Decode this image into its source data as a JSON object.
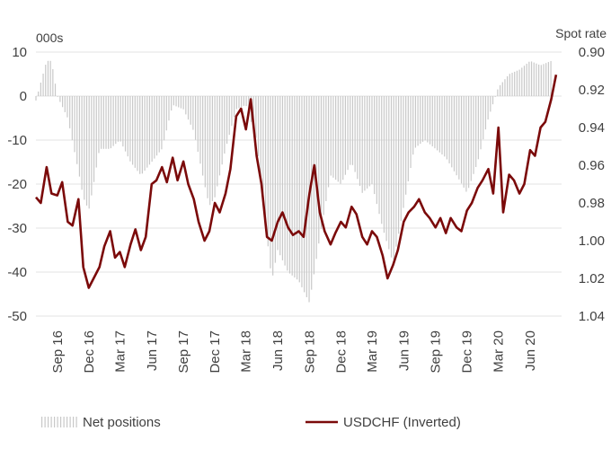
{
  "chart_data": {
    "type": "bar+line",
    "title": "",
    "left_axis": {
      "unit_label": "000s",
      "range": [
        -50,
        10
      ],
      "ticks": [
        "10",
        "0",
        "-10",
        "-20",
        "-30",
        "-40",
        "-50"
      ]
    },
    "right_axis": {
      "unit_label": "Spot rate",
      "range": [
        0.9,
        1.04
      ],
      "inverted": true,
      "ticks": [
        "0.90",
        "0.92",
        "0.94",
        "0.96",
        "0.98",
        "1.00",
        "1.02",
        "1.04"
      ]
    },
    "x_axis": {
      "start": "2016-07-01",
      "end": "2020-08-31",
      "labels": [
        {
          "text": "Sep 16",
          "date": "2016-09-01"
        },
        {
          "text": "Dec 16",
          "date": "2016-12-01"
        },
        {
          "text": "Mar 17",
          "date": "2017-03-01"
        },
        {
          "text": "Jun 17",
          "date": "2017-06-01"
        },
        {
          "text": "Sep 17",
          "date": "2017-09-01"
        },
        {
          "text": "Dec 17",
          "date": "2017-12-01"
        },
        {
          "text": "Mar 18",
          "date": "2018-03-01"
        },
        {
          "text": "Jun 18",
          "date": "2018-06-01"
        },
        {
          "text": "Sep 18",
          "date": "2018-09-01"
        },
        {
          "text": "Dec 18",
          "date": "2018-12-01"
        },
        {
          "text": "Mar 19",
          "date": "2019-03-01"
        },
        {
          "text": "Jun 19",
          "date": "2019-06-01"
        },
        {
          "text": "Sep 19",
          "date": "2019-09-01"
        },
        {
          "text": "Dec 19",
          "date": "2019-12-01"
        },
        {
          "text": "Mar 20",
          "date": "2020-03-01"
        },
        {
          "text": "Jun 20",
          "date": "2020-06-01"
        }
      ]
    },
    "grid": "horizontal",
    "legend_position": "bottom",
    "series": [
      {
        "name": "Net positions",
        "type": "bar",
        "axis": "left",
        "color": "#c8c8c8",
        "points": [
          [
            "2016-07-01",
            -1
          ],
          [
            "2016-08-01",
            8
          ],
          [
            "2016-08-15",
            8
          ],
          [
            "2016-09-01",
            0
          ],
          [
            "2016-10-01",
            -5
          ],
          [
            "2016-11-01",
            -17
          ],
          [
            "2016-11-15",
            -23
          ],
          [
            "2016-12-01",
            -26
          ],
          [
            "2016-12-15",
            -20
          ],
          [
            "2017-01-01",
            -12
          ],
          [
            "2017-02-01",
            -12
          ],
          [
            "2017-03-01",
            -10
          ],
          [
            "2017-04-01",
            -15
          ],
          [
            "2017-05-01",
            -18
          ],
          [
            "2017-06-01",
            -15
          ],
          [
            "2017-07-01",
            -12
          ],
          [
            "2017-08-01",
            -2
          ],
          [
            "2017-09-01",
            -3
          ],
          [
            "2017-10-01",
            -8
          ],
          [
            "2017-11-01",
            -20
          ],
          [
            "2017-11-15",
            -25
          ],
          [
            "2017-12-01",
            -23
          ],
          [
            "2018-01-01",
            -12
          ],
          [
            "2018-02-01",
            -3
          ],
          [
            "2018-03-01",
            -2
          ],
          [
            "2018-04-01",
            -10
          ],
          [
            "2018-05-01",
            -32
          ],
          [
            "2018-05-15",
            -42
          ],
          [
            "2018-06-01",
            -35
          ],
          [
            "2018-07-01",
            -40
          ],
          [
            "2018-08-01",
            -42
          ],
          [
            "2018-09-01",
            -47
          ],
          [
            "2018-10-01",
            -32
          ],
          [
            "2018-11-01",
            -18
          ],
          [
            "2018-12-01",
            -20
          ],
          [
            "2019-01-01",
            -15
          ],
          [
            "2019-02-01",
            -22
          ],
          [
            "2019-03-01",
            -20
          ],
          [
            "2019-04-01",
            -30
          ],
          [
            "2019-05-01",
            -38
          ],
          [
            "2019-06-01",
            -25
          ],
          [
            "2019-07-01",
            -12
          ],
          [
            "2019-08-01",
            -10
          ],
          [
            "2019-09-01",
            -12
          ],
          [
            "2019-10-01",
            -14
          ],
          [
            "2019-11-01",
            -18
          ],
          [
            "2019-12-01",
            -22
          ],
          [
            "2020-01-01",
            -15
          ],
          [
            "2020-02-01",
            -5
          ],
          [
            "2020-03-01",
            2
          ],
          [
            "2020-04-01",
            5
          ],
          [
            "2020-05-01",
            6
          ],
          [
            "2020-06-01",
            8
          ],
          [
            "2020-07-01",
            7
          ],
          [
            "2020-08-01",
            8
          ]
        ]
      },
      {
        "name": "USDCHF (Inverted)",
        "type": "line",
        "axis": "right",
        "color": "#7b0a0a",
        "points": [
          [
            "2016-07-01",
            0.977
          ],
          [
            "2016-07-15",
            0.98
          ],
          [
            "2016-08-01",
            0.961
          ],
          [
            "2016-08-15",
            0.975
          ],
          [
            "2016-09-01",
            0.976
          ],
          [
            "2016-09-15",
            0.969
          ],
          [
            "2016-10-01",
            0.99
          ],
          [
            "2016-10-15",
            0.992
          ],
          [
            "2016-11-01",
            0.978
          ],
          [
            "2016-11-15",
            1.014
          ],
          [
            "2016-12-01",
            1.025
          ],
          [
            "2016-12-15",
            1.02
          ],
          [
            "2017-01-01",
            1.014
          ],
          [
            "2017-01-15",
            1.003
          ],
          [
            "2017-02-01",
            0.995
          ],
          [
            "2017-02-15",
            1.009
          ],
          [
            "2017-03-01",
            1.006
          ],
          [
            "2017-03-15",
            1.014
          ],
          [
            "2017-04-01",
            1.002
          ],
          [
            "2017-04-15",
            0.994
          ],
          [
            "2017-05-01",
            1.005
          ],
          [
            "2017-05-15",
            0.998
          ],
          [
            "2017-06-01",
            0.97
          ],
          [
            "2017-06-15",
            0.968
          ],
          [
            "2017-07-01",
            0.961
          ],
          [
            "2017-07-15",
            0.969
          ],
          [
            "2017-08-01",
            0.956
          ],
          [
            "2017-08-15",
            0.968
          ],
          [
            "2017-09-01",
            0.958
          ],
          [
            "2017-09-15",
            0.97
          ],
          [
            "2017-10-01",
            0.978
          ],
          [
            "2017-10-15",
            0.99
          ],
          [
            "2017-11-01",
            1.0
          ],
          [
            "2017-11-15",
            0.995
          ],
          [
            "2017-12-01",
            0.98
          ],
          [
            "2017-12-15",
            0.985
          ],
          [
            "2018-01-01",
            0.975
          ],
          [
            "2018-01-15",
            0.962
          ],
          [
            "2018-02-01",
            0.934
          ],
          [
            "2018-02-15",
            0.93
          ],
          [
            "2018-03-01",
            0.941
          ],
          [
            "2018-03-15",
            0.925
          ],
          [
            "2018-04-01",
            0.955
          ],
          [
            "2018-04-15",
            0.97
          ],
          [
            "2018-05-01",
            0.998
          ],
          [
            "2018-05-15",
            1.0
          ],
          [
            "2018-06-01",
            0.99
          ],
          [
            "2018-06-15",
            0.985
          ],
          [
            "2018-07-01",
            0.993
          ],
          [
            "2018-07-15",
            0.997
          ],
          [
            "2018-08-01",
            0.995
          ],
          [
            "2018-08-15",
            0.998
          ],
          [
            "2018-09-01",
            0.975
          ],
          [
            "2018-09-15",
            0.96
          ],
          [
            "2018-10-01",
            0.985
          ],
          [
            "2018-10-15",
            0.995
          ],
          [
            "2018-11-01",
            1.002
          ],
          [
            "2018-11-15",
            0.996
          ],
          [
            "2018-12-01",
            0.99
          ],
          [
            "2018-12-15",
            0.993
          ],
          [
            "2019-01-01",
            0.982
          ],
          [
            "2019-01-15",
            0.986
          ],
          [
            "2019-02-01",
            0.998
          ],
          [
            "2019-02-15",
            1.002
          ],
          [
            "2019-03-01",
            0.995
          ],
          [
            "2019-03-15",
            0.998
          ],
          [
            "2019-04-01",
            1.008
          ],
          [
            "2019-04-15",
            1.02
          ],
          [
            "2019-05-01",
            1.013
          ],
          [
            "2019-05-15",
            1.005
          ],
          [
            "2019-06-01",
            0.99
          ],
          [
            "2019-06-15",
            0.985
          ],
          [
            "2019-07-01",
            0.982
          ],
          [
            "2019-07-15",
            0.978
          ],
          [
            "2019-08-01",
            0.985
          ],
          [
            "2019-08-15",
            0.988
          ],
          [
            "2019-09-01",
            0.993
          ],
          [
            "2019-09-15",
            0.988
          ],
          [
            "2019-10-01",
            0.996
          ],
          [
            "2019-10-15",
            0.988
          ],
          [
            "2019-11-01",
            0.993
          ],
          [
            "2019-11-15",
            0.995
          ],
          [
            "2019-12-01",
            0.984
          ],
          [
            "2019-12-15",
            0.98
          ],
          [
            "2020-01-01",
            0.972
          ],
          [
            "2020-01-15",
            0.968
          ],
          [
            "2020-02-01",
            0.962
          ],
          [
            "2020-02-15",
            0.975
          ],
          [
            "2020-03-01",
            0.94
          ],
          [
            "2020-03-15",
            0.985
          ],
          [
            "2020-04-01",
            0.965
          ],
          [
            "2020-04-15",
            0.968
          ],
          [
            "2020-05-01",
            0.975
          ],
          [
            "2020-05-15",
            0.97
          ],
          [
            "2020-06-01",
            0.952
          ],
          [
            "2020-06-15",
            0.955
          ],
          [
            "2020-07-01",
            0.94
          ],
          [
            "2020-07-15",
            0.937
          ],
          [
            "2020-08-01",
            0.925
          ],
          [
            "2020-08-15",
            0.912
          ]
        ]
      }
    ],
    "legend": [
      {
        "label": "Net positions",
        "swatch": "bars"
      },
      {
        "label": "USDCHF (Inverted)",
        "swatch": "line"
      }
    ]
  }
}
